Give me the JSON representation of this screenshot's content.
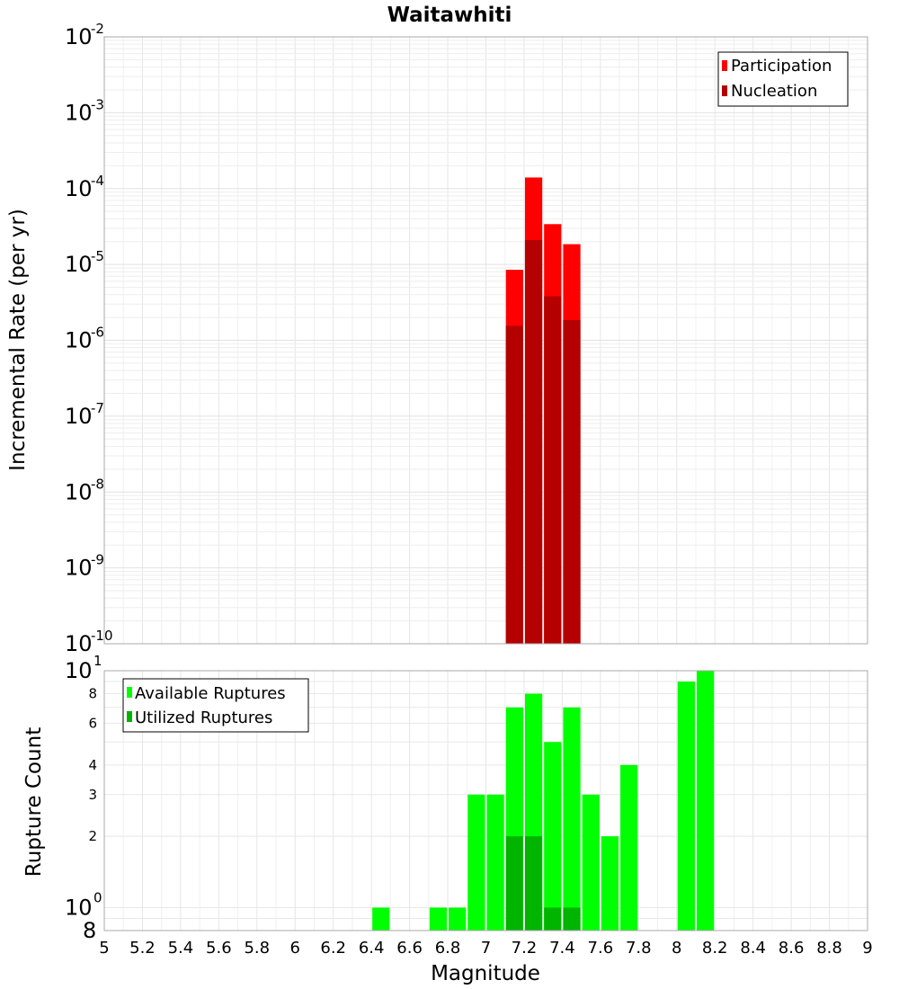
{
  "chart_data": [
    {
      "type": "bar",
      "title": "Waitawhiti",
      "xlabel": "",
      "ylabel": "Incremental Rate (per yr)",
      "yscale": "log",
      "ylim": [
        1e-10,
        0.01
      ],
      "legend_placement": "top-right",
      "bar_width_mag": 0.1,
      "series": [
        {
          "name": "Participation",
          "color": "#ff0000",
          "x": [
            7.15,
            7.25,
            7.35,
            7.45
          ],
          "values": [
            8.5e-06,
            0.00014,
            3.4e-05,
            1.85e-05
          ]
        },
        {
          "name": "Nucleation",
          "color": "#b40000",
          "x": [
            7.15,
            7.25,
            7.35,
            7.45
          ],
          "values": [
            1.55e-06,
            2.1e-05,
            3.8e-06,
            1.85e-06
          ]
        }
      ],
      "y_ticks": [
        {
          "base": "10",
          "exp": "-2",
          "value": 0.01
        },
        {
          "base": "10",
          "exp": "-3",
          "value": 0.001
        },
        {
          "base": "10",
          "exp": "-4",
          "value": 0.0001
        },
        {
          "base": "10",
          "exp": "-5",
          "value": 1e-05
        },
        {
          "base": "10",
          "exp": "-6",
          "value": 1e-06
        },
        {
          "base": "10",
          "exp": "-7",
          "value": 1e-07
        },
        {
          "base": "10",
          "exp": "-8",
          "value": 1e-08
        },
        {
          "base": "10",
          "exp": "-9",
          "value": 1e-09
        },
        {
          "base": "10",
          "exp": "-10",
          "value": 1e-10
        }
      ]
    },
    {
      "type": "bar",
      "title": "",
      "xlabel": "Magnitude",
      "ylabel": "Rupture Count",
      "yscale": "log",
      "ylim": [
        0.8,
        10
      ],
      "xlim": [
        5,
        9
      ],
      "legend_placement": "top-left",
      "bar_width_mag": 0.1,
      "series": [
        {
          "name": "Available Ruptures",
          "color": "#00ff00",
          "x": [
            6.45,
            6.75,
            6.85,
            6.95,
            7.05,
            7.15,
            7.25,
            7.35,
            7.45,
            7.55,
            7.65,
            7.75,
            8.05,
            8.15
          ],
          "values": [
            1,
            1,
            1,
            3,
            3,
            7,
            8,
            5,
            7,
            3,
            2,
            4,
            9,
            10
          ]
        },
        {
          "name": "Utilized Ruptures",
          "color": "#00b400",
          "x": [
            7.15,
            7.25,
            7.35,
            7.45
          ],
          "values": [
            2,
            2,
            1,
            1
          ]
        }
      ],
      "y_ticks": [
        {
          "label": "8",
          "value": 8
        },
        {
          "label": "6",
          "value": 6
        },
        {
          "label": "4",
          "value": 4
        },
        {
          "label": "3",
          "value": 3
        },
        {
          "label": "2",
          "value": 2
        }
      ],
      "y_major_ticks": [
        {
          "base": "10",
          "exp": "1",
          "value": 10
        },
        {
          "base": "10",
          "exp": "0",
          "value": 1
        },
        {
          "base": "8",
          "exp": "",
          "value": 0.8
        }
      ],
      "x_ticks": [
        "5",
        "5.2",
        "5.4",
        "5.6",
        "5.8",
        "6",
        "6.2",
        "6.4",
        "6.6",
        "6.8",
        "7",
        "7.2",
        "7.4",
        "7.6",
        "7.8",
        "8",
        "8.2",
        "8.4",
        "8.6",
        "8.8",
        "9"
      ]
    }
  ]
}
